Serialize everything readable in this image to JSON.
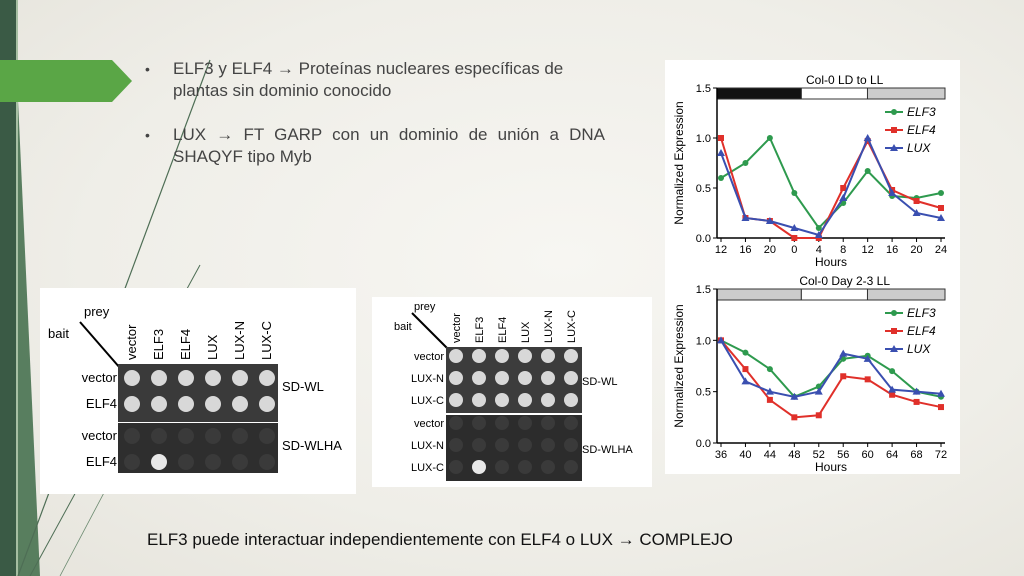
{
  "bullets": [
    {
      "text": "ELF3 y ELF4 → Proteínas nucleares específicas de plantas sin dominio conocido"
    },
    {
      "text": "LUX → FT GARP con un dominio de unión a DNA SHAQYF tipo Myb"
    }
  ],
  "caption": "ELF3 puede interactuar independientemente con ELF4 o LUX → COMPLEJO",
  "y2h_left": {
    "prey_label": "prey",
    "bait_label": "bait",
    "columns": [
      "vector",
      "ELF3",
      "ELF4",
      "LUX",
      "LUX-N",
      "LUX-C"
    ],
    "rows_top": [
      "vector",
      "ELF4"
    ],
    "rows_bottom": [
      "vector",
      "ELF4"
    ],
    "media_top": "SD-WL",
    "media_bottom": "SD-WLHA"
  },
  "y2h_right": {
    "prey_label": "prey",
    "bait_label": "bait",
    "columns": [
      "vector",
      "ELF3",
      "ELF4",
      "LUX",
      "LUX-N",
      "LUX-C"
    ],
    "rows_top": [
      "vector",
      "LUX-N",
      "LUX-C"
    ],
    "rows_bottom": [
      "vector",
      "LUX-N",
      "LUX-C"
    ],
    "media_top": "SD-WL",
    "media_bottom": "SD-WLHA"
  },
  "chart_data": [
    {
      "type": "line",
      "title": "Col-0 LD to LL",
      "xlabel": "Hours",
      "ylabel": "Normalized Expression",
      "categories": [
        "12",
        "16",
        "20",
        "0",
        "4",
        "8",
        "12",
        "16",
        "20",
        "24"
      ],
      "ylim": [
        0,
        1.5
      ],
      "yticks": [
        "0.0",
        "0.5",
        "1.0",
        "1.5"
      ],
      "legend": "top-right",
      "series": [
        {
          "name": "ELF3",
          "color": "#2e9a4e",
          "marker": "circle",
          "values": [
            0.6,
            0.75,
            1.0,
            0.45,
            0.1,
            0.35,
            0.67,
            0.42,
            0.4,
            0.45
          ]
        },
        {
          "name": "ELF4",
          "color": "#e0302a",
          "marker": "square",
          "values": [
            1.0,
            0.2,
            0.17,
            0.0,
            0.0,
            0.5,
            0.97,
            0.48,
            0.37,
            0.3
          ]
        },
        {
          "name": "LUX",
          "color": "#3a4fb0",
          "marker": "triangle",
          "values": [
            0.85,
            0.2,
            0.17,
            0.1,
            0.03,
            0.4,
            1.0,
            0.45,
            0.25,
            0.2
          ]
        }
      ]
    },
    {
      "type": "line",
      "title": "Col-0 Day 2-3 LL",
      "xlabel": "Hours",
      "ylabel": "Normalized Expression",
      "categories": [
        "36",
        "40",
        "44",
        "48",
        "52",
        "56",
        "60",
        "64",
        "68",
        "72"
      ],
      "ylim": [
        0,
        1.5
      ],
      "yticks": [
        "0.0",
        "0.5",
        "1.0",
        "1.5"
      ],
      "legend": "top-right",
      "series": [
        {
          "name": "ELF3",
          "color": "#2e9a4e",
          "marker": "circle",
          "values": [
            1.0,
            0.88,
            0.72,
            0.45,
            0.55,
            0.82,
            0.85,
            0.7,
            0.5,
            0.45
          ]
        },
        {
          "name": "ELF4",
          "color": "#e0302a",
          "marker": "square",
          "values": [
            1.0,
            0.72,
            0.42,
            0.25,
            0.27,
            0.65,
            0.62,
            0.47,
            0.4,
            0.35
          ]
        },
        {
          "name": "LUX",
          "color": "#3a4fb0",
          "marker": "triangle",
          "values": [
            1.0,
            0.6,
            0.5,
            0.45,
            0.5,
            0.87,
            0.82,
            0.52,
            0.5,
            0.48
          ]
        }
      ]
    }
  ]
}
